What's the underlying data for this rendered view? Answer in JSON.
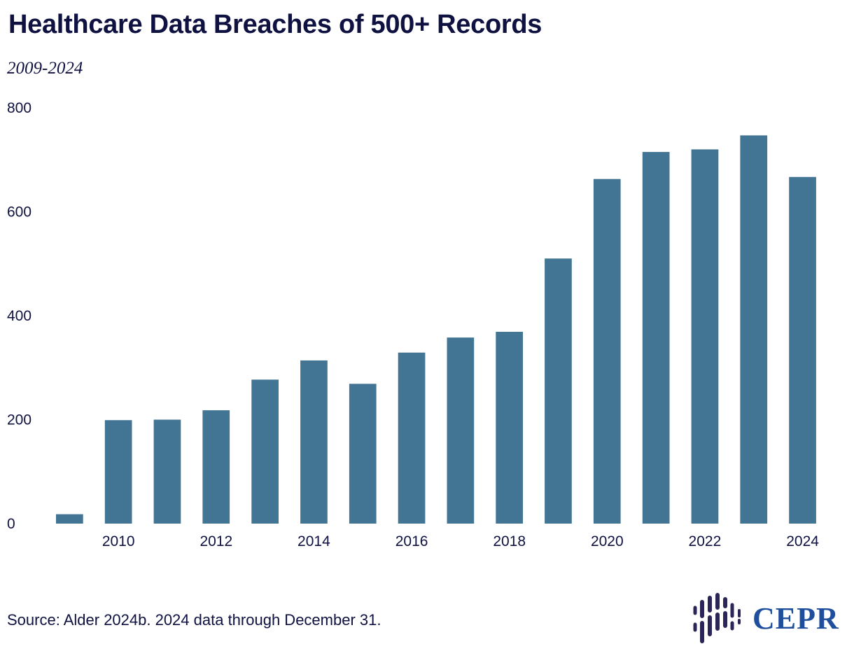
{
  "header": {
    "title": "Healthcare Data Breaches of 500+ Records",
    "subtitle": "2009-2024"
  },
  "footer": {
    "source": "Source: Alder 2024b. 2024 data through December 31.",
    "logo_text": "CEPR"
  },
  "colors": {
    "bar": "#427594",
    "text": "#0f1140",
    "logo": "#1f4f9c",
    "logo_mark": "#2a2658"
  },
  "chart_data": {
    "type": "bar",
    "title": "Healthcare Data Breaches of 500+ Records",
    "subtitle": "2009-2024",
    "xlabel": "",
    "ylabel": "",
    "ylim": [
      0,
      800
    ],
    "yticks": [
      0,
      200,
      400,
      600,
      800
    ],
    "grid": false,
    "categories": [
      "2009",
      "2010",
      "2011",
      "2012",
      "2013",
      "2014",
      "2015",
      "2016",
      "2017",
      "2018",
      "2019",
      "2020",
      "2021",
      "2022",
      "2023",
      "2024"
    ],
    "xtick_labels": [
      "2010",
      "2012",
      "2014",
      "2016",
      "2018",
      "2020",
      "2022",
      "2024"
    ],
    "values": [
      18,
      199,
      200,
      218,
      277,
      314,
      269,
      329,
      358,
      369,
      510,
      663,
      715,
      720,
      747,
      667
    ]
  }
}
